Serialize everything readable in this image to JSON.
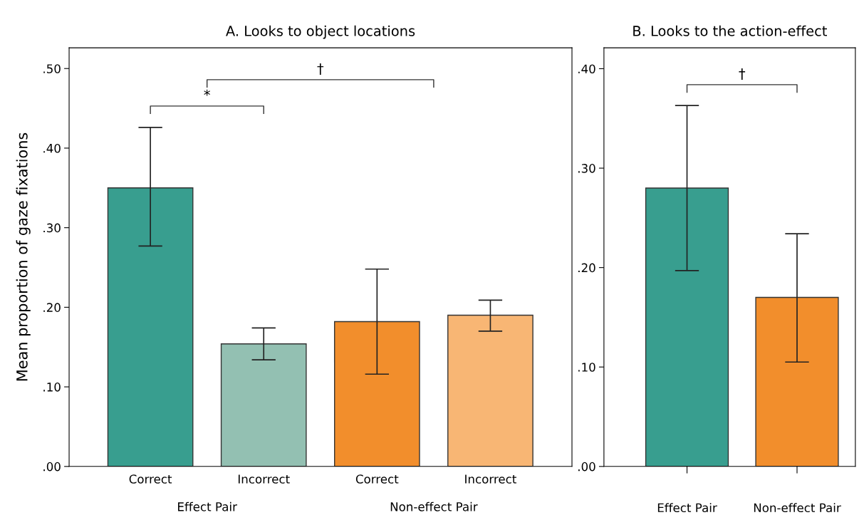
{
  "chart_data": [
    {
      "type": "bar",
      "title": "A. Looks to object locations",
      "ylabel": "Mean proportion of gaze fixations",
      "categories": [
        "Correct",
        "Incorrect",
        "Correct",
        "Incorrect"
      ],
      "values": [
        0.35,
        0.154,
        0.182,
        0.19
      ],
      "colors": [
        "#389e8f",
        "#93c0b2",
        "#f28e2c",
        "#f8b674"
      ],
      "errors": [
        [
          0.277,
          0.426
        ],
        [
          0.134,
          0.174
        ],
        [
          0.116,
          0.248
        ],
        [
          0.17,
          0.209
        ]
      ],
      "ylim": [
        0,
        0.526
      ],
      "yticks": [
        {
          "value": 0,
          "label": ".00"
        },
        {
          "value": 0.1,
          "label": ".10"
        },
        {
          "value": 0.2,
          "label": ".20"
        },
        {
          "value": 0.3,
          "label": ".30"
        },
        {
          "value": 0.4,
          "label": ".40"
        },
        {
          "value": 0.5,
          "label": ".50"
        }
      ],
      "annotations": [
        "*",
        "†",
        "Effect Pair",
        "Non-effect Pair"
      ],
      "grid": false,
      "legend": false
    },
    {
      "type": "bar",
      "title": "B. Looks to the action-effect",
      "categories": [
        "Effect Pair",
        "Non-effect Pair"
      ],
      "values": [
        0.28,
        0.17
      ],
      "colors": [
        "#389e8f",
        "#f28e2c"
      ],
      "errors": [
        [
          0.197,
          0.363
        ],
        [
          0.105,
          0.234
        ]
      ],
      "ylim": [
        0,
        0.421
      ],
      "yticks": [
        {
          "value": 0,
          "label": ".00"
        },
        {
          "value": 0.1,
          "label": ".10"
        },
        {
          "value": 0.2,
          "label": ".20"
        },
        {
          "value": 0.3,
          "label": ".30"
        },
        {
          "value": 0.4,
          "label": ".40"
        }
      ],
      "annotations": [
        "†"
      ],
      "grid": false,
      "legend": false
    }
  ]
}
